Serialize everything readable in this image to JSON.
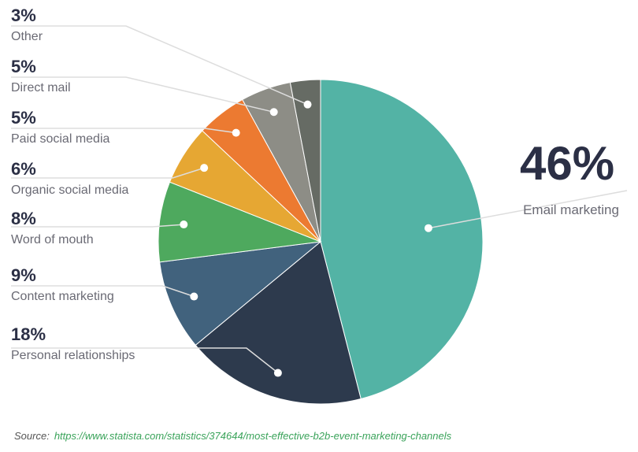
{
  "chart_data": {
    "type": "pie",
    "title": "",
    "slices": [
      {
        "label": "Email marketing",
        "value": 46,
        "display": "46%",
        "color": "#53b3a5"
      },
      {
        "label": "Personal relationships",
        "value": 18,
        "display": "18%",
        "color": "#2d3a4d"
      },
      {
        "label": "Content marketing",
        "value": 9,
        "display": "9%",
        "color": "#41627d"
      },
      {
        "label": "Word of mouth",
        "value": 8,
        "display": "8%",
        "color": "#4ea95e"
      },
      {
        "label": "Organic social media",
        "value": 6,
        "display": "6%",
        "color": "#e6a733"
      },
      {
        "label": "Paid social media",
        "value": 5,
        "display": "5%",
        "color": "#ec7a31"
      },
      {
        "label": "Direct mail",
        "value": 5,
        "display": "5%",
        "color": "#8d8d86"
      },
      {
        "label": "Other",
        "value": 3,
        "display": "3%",
        "color": "#666b64"
      }
    ]
  },
  "source": {
    "label": "Source:",
    "url": "https://www.statista.com/statistics/374644/most-effective-b2b-event-marketing-channels"
  }
}
